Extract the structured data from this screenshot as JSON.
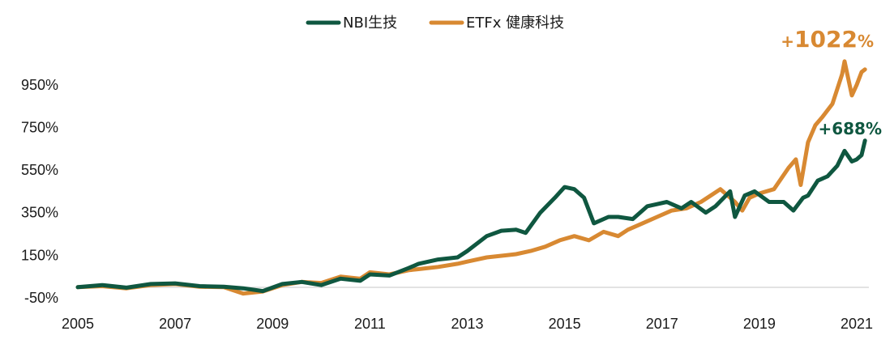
{
  "chart_data": {
    "type": "line",
    "title": "",
    "xlabel": "",
    "ylabel": "",
    "xlim": [
      2005,
      2021.25
    ],
    "ylim": [
      -50,
      1120
    ],
    "x_ticks": [
      "2005",
      "2007",
      "2009",
      "2011",
      "2013",
      "2015",
      "2017",
      "2019",
      "2021"
    ],
    "y_ticks": [
      "-50%",
      "150%",
      "350%",
      "550%",
      "750%",
      "950%"
    ],
    "grid": false,
    "legend_position": "top-center",
    "series": [
      {
        "name": "NBI生技",
        "color": "#0f5740",
        "x": [
          2005.0,
          2005.5,
          2006.0,
          2006.5,
          2007.0,
          2007.5,
          2008.0,
          2008.4,
          2008.8,
          2009.2,
          2009.6,
          2010.0,
          2010.4,
          2010.8,
          2011.0,
          2011.4,
          2011.8,
          2012.0,
          2012.4,
          2012.8,
          2013.0,
          2013.4,
          2013.7,
          2014.0,
          2014.2,
          2014.5,
          2014.8,
          2015.0,
          2015.2,
          2015.4,
          2015.6,
          2015.9,
          2016.1,
          2016.4,
          2016.7,
          2016.9,
          2017.1,
          2017.4,
          2017.6,
          2017.9,
          2018.1,
          2018.4,
          2018.5,
          2018.7,
          2018.9,
          2019.2,
          2019.5,
          2019.7,
          2019.9,
          2020.0,
          2020.2,
          2020.4,
          2020.6,
          2020.75,
          2020.9,
          2021.0,
          2021.1,
          2021.17
        ],
        "values": [
          0,
          10,
          -2,
          15,
          18,
          5,
          2,
          -5,
          -18,
          15,
          25,
          10,
          40,
          30,
          60,
          55,
          90,
          110,
          130,
          140,
          170,
          240,
          265,
          270,
          255,
          350,
          420,
          470,
          460,
          420,
          300,
          330,
          330,
          320,
          380,
          390,
          400,
          370,
          400,
          350,
          380,
          450,
          330,
          430,
          450,
          400,
          400,
          360,
          420,
          430,
          500,
          520,
          570,
          640,
          590,
          600,
          620,
          688
        ]
      },
      {
        "name": "ETFx 健康科技",
        "color": "#d88932",
        "x": [
          2005.0,
          2005.5,
          2006.0,
          2006.5,
          2007.0,
          2007.5,
          2008.0,
          2008.4,
          2008.8,
          2009.2,
          2009.6,
          2010.0,
          2010.4,
          2010.8,
          2011.0,
          2011.4,
          2011.8,
          2012.0,
          2012.4,
          2012.8,
          2013.0,
          2013.4,
          2013.8,
          2014.0,
          2014.3,
          2014.6,
          2014.9,
          2015.2,
          2015.5,
          2015.8,
          2016.1,
          2016.3,
          2016.6,
          2016.9,
          2017.2,
          2017.5,
          2017.8,
          2018.0,
          2018.2,
          2018.5,
          2018.65,
          2018.8,
          2019.0,
          2019.3,
          2019.6,
          2019.75,
          2019.85,
          2020.0,
          2020.15,
          2020.3,
          2020.5,
          2020.7,
          2020.75,
          2020.9,
          2021.0,
          2021.1,
          2021.17
        ],
        "values": [
          0,
          5,
          -5,
          10,
          15,
          2,
          0,
          -30,
          -20,
          10,
          25,
          20,
          50,
          40,
          70,
          60,
          80,
          85,
          95,
          110,
          120,
          140,
          150,
          155,
          170,
          190,
          220,
          240,
          220,
          260,
          240,
          270,
          300,
          330,
          360,
          370,
          400,
          430,
          460,
          400,
          360,
          420,
          440,
          460,
          560,
          600,
          480,
          680,
          760,
          800,
          860,
          1000,
          1060,
          900,
          950,
          1010,
          1022
        ]
      }
    ],
    "annotations": [
      {
        "text_prefix": "+",
        "text_value": "1022",
        "text_suffix": "%",
        "series": "ETFx 健康科技"
      },
      {
        "text_prefix": "+",
        "text_value": "688",
        "text_suffix": "%",
        "series": "NBI生技"
      }
    ]
  }
}
